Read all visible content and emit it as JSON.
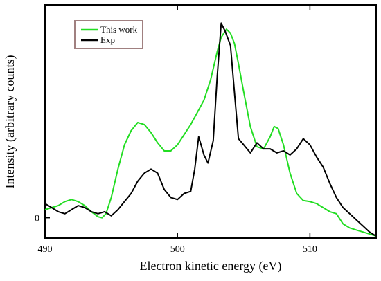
{
  "chart_data": {
    "type": "line",
    "title": "",
    "xlabel": "Electron kinetic energy (eV)",
    "ylabel": "Intensity (arbitrary counts)",
    "xlim": [
      490,
      515
    ],
    "ylim": [
      -0.1,
      1.05
    ],
    "x_ticks": [
      490,
      500,
      510
    ],
    "y_ticks": [
      0
    ],
    "grid": false,
    "legend_position": "top-left",
    "series": [
      {
        "name": "This work",
        "color": "#22dd22",
        "x": [
          490,
          490.5,
          491,
          491.5,
          492,
          492.5,
          493,
          493.5,
          494,
          494.3,
          494.6,
          495,
          495.5,
          496,
          496.5,
          497,
          497.5,
          498,
          498.5,
          499,
          499.5,
          500,
          500.5,
          501,
          501.5,
          502,
          502.5,
          503,
          503.3,
          503.7,
          504,
          504.3,
          504.6,
          505,
          505.5,
          506,
          506.5,
          507,
          507.3,
          507.6,
          508,
          508.5,
          509,
          509.5,
          510,
          510.5,
          511,
          511.5,
          512,
          512.5,
          513,
          513.5,
          514,
          514.5,
          515
        ],
        "y": [
          0.04,
          0.05,
          0.06,
          0.08,
          0.09,
          0.08,
          0.06,
          0.03,
          0.005,
          0.0,
          0.02,
          0.1,
          0.24,
          0.36,
          0.43,
          0.47,
          0.46,
          0.42,
          0.37,
          0.33,
          0.33,
          0.36,
          0.41,
          0.46,
          0.52,
          0.58,
          0.68,
          0.82,
          0.89,
          0.93,
          0.91,
          0.86,
          0.76,
          0.62,
          0.45,
          0.35,
          0.34,
          0.4,
          0.45,
          0.44,
          0.36,
          0.22,
          0.12,
          0.085,
          0.08,
          0.07,
          0.05,
          0.03,
          0.02,
          -0.03,
          -0.05,
          -0.06,
          -0.07,
          -0.08,
          -0.09
        ]
      },
      {
        "name": "Exp",
        "color": "#000000",
        "x": [
          490,
          490.5,
          491,
          491.5,
          492,
          492.5,
          493,
          493.5,
          494,
          494.5,
          495,
          495.5,
          496,
          496.5,
          497,
          497.5,
          498,
          498.5,
          499,
          499.5,
          500,
          500.5,
          501,
          501.3,
          501.6,
          502,
          502.3,
          502.7,
          503,
          503.3,
          503.6,
          504,
          504.3,
          504.6,
          505,
          505.5,
          506,
          506.5,
          507,
          507.5,
          508,
          508.5,
          509,
          509.5,
          510,
          510.5,
          511,
          511.5,
          512,
          512.5,
          513,
          513.5,
          514,
          514.5,
          515
        ],
        "y": [
          0.07,
          0.05,
          0.03,
          0.02,
          0.04,
          0.06,
          0.05,
          0.03,
          0.02,
          0.03,
          0.01,
          0.04,
          0.08,
          0.12,
          0.18,
          0.22,
          0.24,
          0.22,
          0.14,
          0.1,
          0.09,
          0.12,
          0.13,
          0.24,
          0.4,
          0.31,
          0.27,
          0.38,
          0.7,
          0.96,
          0.92,
          0.85,
          0.62,
          0.39,
          0.36,
          0.32,
          0.37,
          0.34,
          0.34,
          0.32,
          0.33,
          0.31,
          0.34,
          0.39,
          0.36,
          0.3,
          0.25,
          0.17,
          0.1,
          0.05,
          0.02,
          -0.01,
          -0.04,
          -0.07,
          -0.09
        ]
      }
    ]
  }
}
